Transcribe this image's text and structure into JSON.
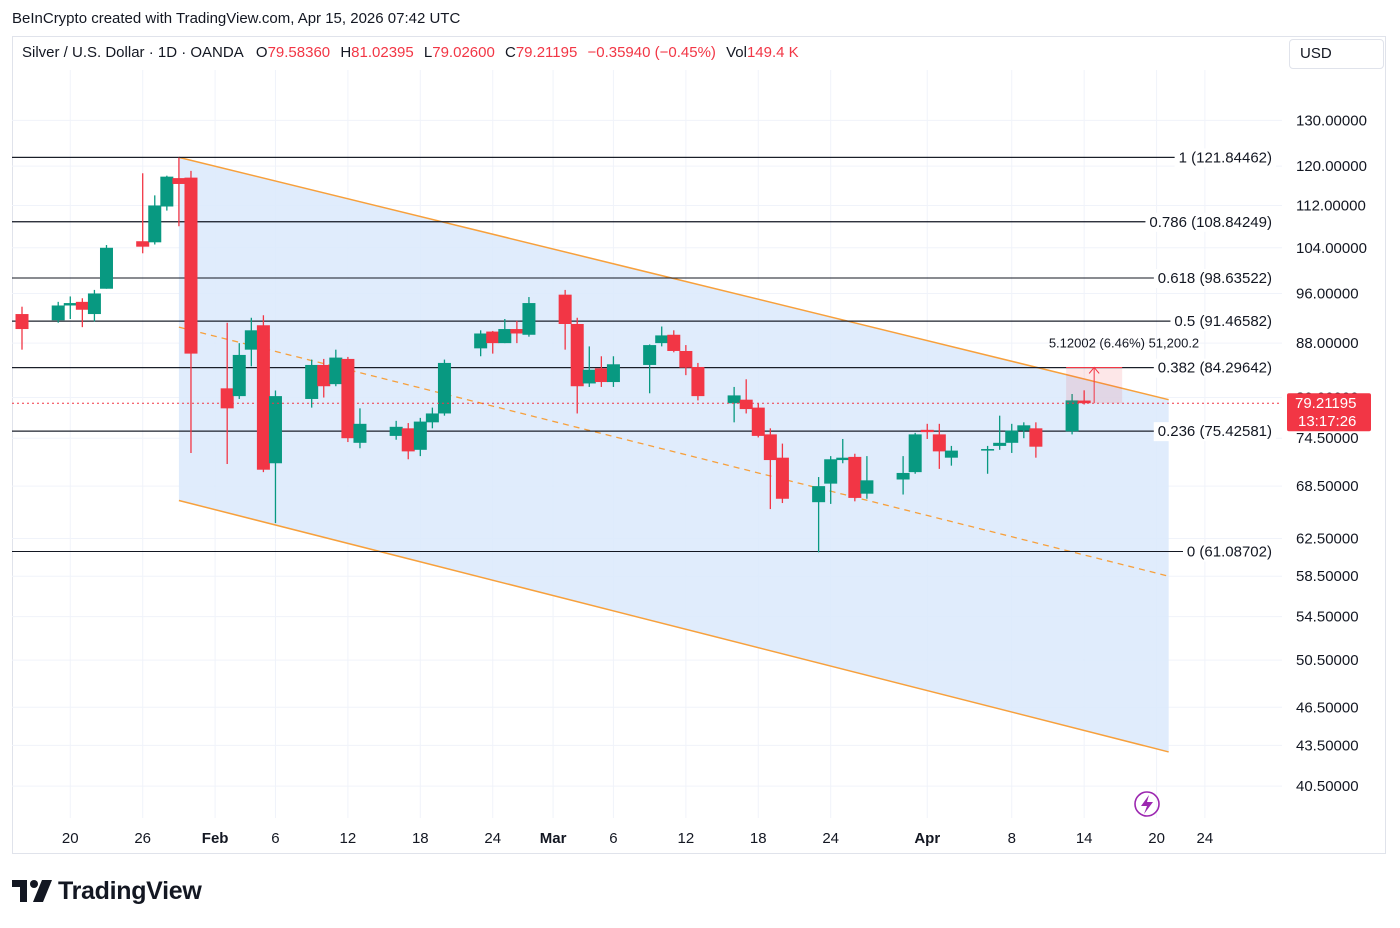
{
  "header": {
    "credit": "BeInCrypto created with TradingView.com, Apr 15, 2026 07:42 UTC"
  },
  "legend": {
    "symbol": "Silver / U.S. Dollar · 1D · OANDA",
    "o_label": "O",
    "o_value": "79.58360",
    "h_label": "H",
    "h_value": "81.02395",
    "l_label": "L",
    "l_value": "79.02600",
    "c_label": "C",
    "c_value": "79.21195",
    "change": "−0.35940 (−0.45%)",
    "vol_label": "Vol",
    "vol_value": "149.4 K"
  },
  "currency_button": "USD",
  "brand": {
    "name": "TradingView"
  },
  "colors": {
    "up": "#089981",
    "down": "#f23645",
    "channel_line": "#f7a03c",
    "channel_fill": "#dbe9fb",
    "fib_line": "#131722",
    "price_line": "#f23645",
    "grid": "#f0f3fa"
  },
  "chart_data": {
    "type": "candlestick",
    "title": "Silver / U.S. Dollar · 1D · OANDA",
    "y_axis": {
      "scale": "log",
      "ticks": [
        "130.00000",
        "120.00000",
        "112.00000",
        "104.00000",
        "96.00000",
        "88.00000",
        "80.00000",
        "74.50000",
        "68.50000",
        "62.50000",
        "58.50000",
        "54.50000",
        "50.50000",
        "46.50000",
        "43.50000",
        "40.50000"
      ],
      "range": [
        38.3,
        142
      ]
    },
    "x_axis": {
      "start_date": "2026-01-16",
      "end_date": "2026-04-25",
      "tick_labels": [
        {
          "label": "20",
          "date": "2026-01-20"
        },
        {
          "label": "26",
          "date": "2026-01-26"
        },
        {
          "label": "Feb",
          "date": "2026-02-01",
          "bold": true
        },
        {
          "label": "6",
          "date": "2026-02-06"
        },
        {
          "label": "12",
          "date": "2026-02-12"
        },
        {
          "label": "18",
          "date": "2026-02-18"
        },
        {
          "label": "24",
          "date": "2026-02-24"
        },
        {
          "label": "Mar",
          "date": "2026-03-01",
          "bold": true
        },
        {
          "label": "6",
          "date": "2026-03-06"
        },
        {
          "label": "12",
          "date": "2026-03-12"
        },
        {
          "label": "18",
          "date": "2026-03-18"
        },
        {
          "label": "24",
          "date": "2026-03-24"
        },
        {
          "label": "Apr",
          "date": "2026-04-01",
          "bold": true
        },
        {
          "label": "8",
          "date": "2026-04-08"
        },
        {
          "label": "14",
          "date": "2026-04-14"
        },
        {
          "label": "20",
          "date": "2026-04-20"
        },
        {
          "label": "24",
          "date": "2026-04-24"
        }
      ]
    },
    "candles": [
      {
        "date": "2026-01-16",
        "o": 92.6,
        "h": 93.8,
        "l": 87.0,
        "c": 90.2
      },
      {
        "date": "2026-01-19",
        "o": 91.6,
        "h": 94.6,
        "l": 91.2,
        "c": 94.0
      },
      {
        "date": "2026-01-20",
        "o": 94.0,
        "h": 95.5,
        "l": 91.8,
        "c": 94.4
      },
      {
        "date": "2026-01-21",
        "o": 94.6,
        "h": 95.2,
        "l": 90.5,
        "c": 93.3
      },
      {
        "date": "2026-01-22",
        "o": 92.6,
        "h": 96.6,
        "l": 91.4,
        "c": 96.0
      },
      {
        "date": "2026-01-23",
        "o": 96.8,
        "h": 104.5,
        "l": 96.8,
        "c": 104.0
      },
      {
        "date": "2026-01-26",
        "o": 105.2,
        "h": 118.5,
        "l": 103.0,
        "c": 104.2
      },
      {
        "date": "2026-01-27",
        "o": 105.0,
        "h": 114.0,
        "l": 104.6,
        "c": 112.0
      },
      {
        "date": "2026-01-28",
        "o": 111.8,
        "h": 118.0,
        "l": 111.0,
        "c": 117.8
      },
      {
        "date": "2026-01-29",
        "o": 117.5,
        "h": 121.8,
        "l": 108.0,
        "c": 116.3
      },
      {
        "date": "2026-01-30",
        "o": 117.6,
        "h": 119.0,
        "l": 72.6,
        "c": 86.4
      },
      {
        "date": "2026-02-02",
        "o": 81.3,
        "h": 91.2,
        "l": 71.2,
        "c": 78.5
      },
      {
        "date": "2026-02-03",
        "o": 80.2,
        "h": 88.0,
        "l": 79.8,
        "c": 86.2
      },
      {
        "date": "2026-02-04",
        "o": 87.0,
        "h": 92.0,
        "l": 84.5,
        "c": 90.0
      },
      {
        "date": "2026-02-05",
        "o": 90.8,
        "h": 92.4,
        "l": 70.2,
        "c": 70.5
      },
      {
        "date": "2026-02-06",
        "o": 71.3,
        "h": 81.0,
        "l": 64.2,
        "c": 80.2
      },
      {
        "date": "2026-02-09",
        "o": 79.8,
        "h": 85.5,
        "l": 78.6,
        "c": 84.7
      },
      {
        "date": "2026-02-10",
        "o": 84.7,
        "h": 85.6,
        "l": 80.0,
        "c": 81.6
      },
      {
        "date": "2026-02-11",
        "o": 81.9,
        "h": 87.0,
        "l": 81.6,
        "c": 85.8
      },
      {
        "date": "2026-02-12",
        "o": 85.6,
        "h": 85.9,
        "l": 74.0,
        "c": 74.5
      },
      {
        "date": "2026-02-13",
        "o": 73.9,
        "h": 78.5,
        "l": 73.2,
        "c": 76.4
      },
      {
        "date": "2026-02-16",
        "o": 74.8,
        "h": 76.8,
        "l": 74.3,
        "c": 76.0
      },
      {
        "date": "2026-02-17",
        "o": 75.8,
        "h": 76.5,
        "l": 71.8,
        "c": 72.8
      },
      {
        "date": "2026-02-18",
        "o": 73.0,
        "h": 77.2,
        "l": 72.2,
        "c": 76.7
      },
      {
        "date": "2026-02-19",
        "o": 76.6,
        "h": 78.6,
        "l": 75.8,
        "c": 77.8
      },
      {
        "date": "2026-02-20",
        "o": 77.8,
        "h": 85.5,
        "l": 77.5,
        "c": 85.0
      },
      {
        "date": "2026-02-23",
        "o": 87.2,
        "h": 90.0,
        "l": 86.0,
        "c": 89.5
      },
      {
        "date": "2026-02-24",
        "o": 89.8,
        "h": 89.9,
        "l": 86.4,
        "c": 88.0
      },
      {
        "date": "2026-02-25",
        "o": 88.0,
        "h": 91.8,
        "l": 88.0,
        "c": 90.2
      },
      {
        "date": "2026-02-26",
        "o": 90.2,
        "h": 91.5,
        "l": 88.0,
        "c": 89.5
      },
      {
        "date": "2026-02-27",
        "o": 89.3,
        "h": 95.4,
        "l": 89.0,
        "c": 94.4
      },
      {
        "date": "2026-03-02",
        "o": 95.8,
        "h": 96.6,
        "l": 87.0,
        "c": 91.0
      },
      {
        "date": "2026-03-03",
        "o": 91.0,
        "h": 92.0,
        "l": 77.8,
        "c": 81.6
      },
      {
        "date": "2026-03-04",
        "o": 82.0,
        "h": 87.5,
        "l": 81.5,
        "c": 84.0
      },
      {
        "date": "2026-03-05",
        "o": 84.2,
        "h": 86.0,
        "l": 81.5,
        "c": 82.2
      },
      {
        "date": "2026-03-06",
        "o": 82.2,
        "h": 86.0,
        "l": 81.5,
        "c": 84.8
      },
      {
        "date": "2026-03-09",
        "o": 84.7,
        "h": 87.8,
        "l": 80.6,
        "c": 87.7
      },
      {
        "date": "2026-03-10",
        "o": 88.0,
        "h": 90.6,
        "l": 87.5,
        "c": 89.2
      },
      {
        "date": "2026-03-11",
        "o": 89.3,
        "h": 90.0,
        "l": 86.6,
        "c": 86.8
      },
      {
        "date": "2026-03-12",
        "o": 86.8,
        "h": 87.7,
        "l": 83.2,
        "c": 84.3
      },
      {
        "date": "2026-03-13",
        "o": 84.4,
        "h": 85.0,
        "l": 79.6,
        "c": 80.2
      },
      {
        "date": "2026-03-16",
        "o": 79.2,
        "h": 81.5,
        "l": 76.6,
        "c": 80.3
      },
      {
        "date": "2026-03-17",
        "o": 79.7,
        "h": 82.6,
        "l": 77.8,
        "c": 78.4
      },
      {
        "date": "2026-03-18",
        "o": 78.6,
        "h": 79.2,
        "l": 74.6,
        "c": 74.8
      },
      {
        "date": "2026-03-19",
        "o": 75.0,
        "h": 75.8,
        "l": 65.8,
        "c": 71.7
      },
      {
        "date": "2026-03-20",
        "o": 72.0,
        "h": 73.8,
        "l": 66.5,
        "c": 67.0
      },
      {
        "date": "2026-03-23",
        "o": 66.6,
        "h": 69.6,
        "l": 61.0,
        "c": 68.5
      },
      {
        "date": "2026-03-24",
        "o": 68.8,
        "h": 72.2,
        "l": 66.4,
        "c": 71.8
      },
      {
        "date": "2026-03-25",
        "o": 71.7,
        "h": 74.4,
        "l": 71.3,
        "c": 72.0
      },
      {
        "date": "2026-03-26",
        "o": 72.1,
        "h": 72.5,
        "l": 66.7,
        "c": 67.1
      },
      {
        "date": "2026-03-27",
        "o": 67.6,
        "h": 72.2,
        "l": 67.0,
        "c": 69.2
      },
      {
        "date": "2026-03-30",
        "o": 69.3,
        "h": 72.2,
        "l": 67.5,
        "c": 70.1
      },
      {
        "date": "2026-03-31",
        "o": 70.2,
        "h": 75.2,
        "l": 70.0,
        "c": 75.0
      },
      {
        "date": "2026-04-01",
        "o": 75.6,
        "h": 76.4,
        "l": 74.4,
        "c": 75.3
      },
      {
        "date": "2026-04-02",
        "o": 75.0,
        "h": 76.4,
        "l": 70.6,
        "c": 72.8
      },
      {
        "date": "2026-04-03",
        "o": 72.0,
        "h": 73.5,
        "l": 71.0,
        "c": 72.9
      },
      {
        "date": "2026-04-06",
        "o": 72.9,
        "h": 73.5,
        "l": 70.0,
        "c": 73.1
      },
      {
        "date": "2026-04-07",
        "o": 73.5,
        "h": 77.5,
        "l": 73.0,
        "c": 73.9
      },
      {
        "date": "2026-04-08",
        "o": 73.9,
        "h": 76.4,
        "l": 72.6,
        "c": 75.5
      },
      {
        "date": "2026-04-09",
        "o": 75.5,
        "h": 76.6,
        "l": 74.5,
        "c": 76.2
      },
      {
        "date": "2026-04-10",
        "o": 75.8,
        "h": 76.6,
        "l": 72.0,
        "c": 73.4
      },
      {
        "date": "2026-04-13",
        "o": 75.4,
        "h": 80.5,
        "l": 75.0,
        "c": 79.6
      },
      {
        "date": "2026-04-14",
        "o": 79.58,
        "h": 81.02,
        "l": 79.03,
        "c": 79.21
      }
    ],
    "fib_levels": [
      {
        "ratio": "1",
        "value": 121.84462,
        "label": "1 (121.84462)"
      },
      {
        "ratio": "0.786",
        "value": 108.84249,
        "label": "0.786 (108.84249)"
      },
      {
        "ratio": "0.618",
        "value": 98.63522,
        "label": "0.618 (98.63522)"
      },
      {
        "ratio": "0.5",
        "value": 91.46582,
        "label": "0.5 (91.46582)"
      },
      {
        "ratio": "0.382",
        "value": 84.29642,
        "label": "0.382 (84.29642)"
      },
      {
        "ratio": "0.236",
        "value": 75.42581,
        "label": "0.236 (75.42581)"
      },
      {
        "ratio": "0",
        "value": 61.08702,
        "label": "0 (61.08702)"
      }
    ],
    "channel": {
      "upper": [
        {
          "date": "2026-01-29",
          "value": 121.84
        },
        {
          "date": "2026-04-21",
          "value": 79.7
        }
      ],
      "middle": [
        {
          "date": "2026-01-29",
          "value": 90.5
        },
        {
          "date": "2026-04-21",
          "value": 58.5
        }
      ],
      "lower": [
        {
          "date": "2026-01-29",
          "value": 66.8
        },
        {
          "date": "2026-04-21",
          "value": 43.0
        }
      ]
    },
    "measurement": {
      "label": "5.12002 (6.46%) 51,200.2",
      "from": {
        "date": "2026-04-14",
        "value": 79.21
      },
      "to": {
        "date": "2026-04-14",
        "value": 84.33
      }
    },
    "last_price": {
      "value": 79.21195,
      "label": "79.21195",
      "countdown": "13:17:26"
    }
  }
}
